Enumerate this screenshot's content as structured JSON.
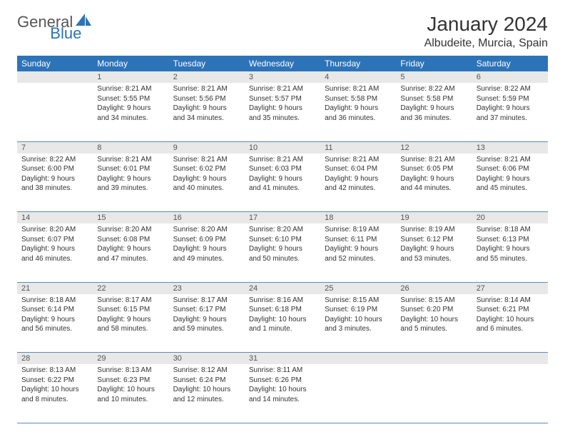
{
  "logo": {
    "text1": "General",
    "text2": "Blue",
    "brand_color": "#2d73b8",
    "gray": "#555555"
  },
  "title": "January 2024",
  "location": "Albudeite, Murcia, Spain",
  "colors": {
    "header_bg": "#2d73b8",
    "header_text": "#ffffff",
    "daynum_bg": "#e8e8e8",
    "border": "#5a8bb5",
    "text": "#333333"
  },
  "day_headers": [
    "Sunday",
    "Monday",
    "Tuesday",
    "Wednesday",
    "Thursday",
    "Friday",
    "Saturday"
  ],
  "weeks": [
    [
      null,
      {
        "n": "1",
        "sunrise": "8:21 AM",
        "sunset": "5:55 PM",
        "daylight": "9 hours and 34 minutes."
      },
      {
        "n": "2",
        "sunrise": "8:21 AM",
        "sunset": "5:56 PM",
        "daylight": "9 hours and 34 minutes."
      },
      {
        "n": "3",
        "sunrise": "8:21 AM",
        "sunset": "5:57 PM",
        "daylight": "9 hours and 35 minutes."
      },
      {
        "n": "4",
        "sunrise": "8:21 AM",
        "sunset": "5:58 PM",
        "daylight": "9 hours and 36 minutes."
      },
      {
        "n": "5",
        "sunrise": "8:22 AM",
        "sunset": "5:58 PM",
        "daylight": "9 hours and 36 minutes."
      },
      {
        "n": "6",
        "sunrise": "8:22 AM",
        "sunset": "5:59 PM",
        "daylight": "9 hours and 37 minutes."
      }
    ],
    [
      {
        "n": "7",
        "sunrise": "8:22 AM",
        "sunset": "6:00 PM",
        "daylight": "9 hours and 38 minutes."
      },
      {
        "n": "8",
        "sunrise": "8:21 AM",
        "sunset": "6:01 PM",
        "daylight": "9 hours and 39 minutes."
      },
      {
        "n": "9",
        "sunrise": "8:21 AM",
        "sunset": "6:02 PM",
        "daylight": "9 hours and 40 minutes."
      },
      {
        "n": "10",
        "sunrise": "8:21 AM",
        "sunset": "6:03 PM",
        "daylight": "9 hours and 41 minutes."
      },
      {
        "n": "11",
        "sunrise": "8:21 AM",
        "sunset": "6:04 PM",
        "daylight": "9 hours and 42 minutes."
      },
      {
        "n": "12",
        "sunrise": "8:21 AM",
        "sunset": "6:05 PM",
        "daylight": "9 hours and 44 minutes."
      },
      {
        "n": "13",
        "sunrise": "8:21 AM",
        "sunset": "6:06 PM",
        "daylight": "9 hours and 45 minutes."
      }
    ],
    [
      {
        "n": "14",
        "sunrise": "8:20 AM",
        "sunset": "6:07 PM",
        "daylight": "9 hours and 46 minutes."
      },
      {
        "n": "15",
        "sunrise": "8:20 AM",
        "sunset": "6:08 PM",
        "daylight": "9 hours and 47 minutes."
      },
      {
        "n": "16",
        "sunrise": "8:20 AM",
        "sunset": "6:09 PM",
        "daylight": "9 hours and 49 minutes."
      },
      {
        "n": "17",
        "sunrise": "8:20 AM",
        "sunset": "6:10 PM",
        "daylight": "9 hours and 50 minutes."
      },
      {
        "n": "18",
        "sunrise": "8:19 AM",
        "sunset": "6:11 PM",
        "daylight": "9 hours and 52 minutes."
      },
      {
        "n": "19",
        "sunrise": "8:19 AM",
        "sunset": "6:12 PM",
        "daylight": "9 hours and 53 minutes."
      },
      {
        "n": "20",
        "sunrise": "8:18 AM",
        "sunset": "6:13 PM",
        "daylight": "9 hours and 55 minutes."
      }
    ],
    [
      {
        "n": "21",
        "sunrise": "8:18 AM",
        "sunset": "6:14 PM",
        "daylight": "9 hours and 56 minutes."
      },
      {
        "n": "22",
        "sunrise": "8:17 AM",
        "sunset": "6:15 PM",
        "daylight": "9 hours and 58 minutes."
      },
      {
        "n": "23",
        "sunrise": "8:17 AM",
        "sunset": "6:17 PM",
        "daylight": "9 hours and 59 minutes."
      },
      {
        "n": "24",
        "sunrise": "8:16 AM",
        "sunset": "6:18 PM",
        "daylight": "10 hours and 1 minute."
      },
      {
        "n": "25",
        "sunrise": "8:15 AM",
        "sunset": "6:19 PM",
        "daylight": "10 hours and 3 minutes."
      },
      {
        "n": "26",
        "sunrise": "8:15 AM",
        "sunset": "6:20 PM",
        "daylight": "10 hours and 5 minutes."
      },
      {
        "n": "27",
        "sunrise": "8:14 AM",
        "sunset": "6:21 PM",
        "daylight": "10 hours and 6 minutes."
      }
    ],
    [
      {
        "n": "28",
        "sunrise": "8:13 AM",
        "sunset": "6:22 PM",
        "daylight": "10 hours and 8 minutes."
      },
      {
        "n": "29",
        "sunrise": "8:13 AM",
        "sunset": "6:23 PM",
        "daylight": "10 hours and 10 minutes."
      },
      {
        "n": "30",
        "sunrise": "8:12 AM",
        "sunset": "6:24 PM",
        "daylight": "10 hours and 12 minutes."
      },
      {
        "n": "31",
        "sunrise": "8:11 AM",
        "sunset": "6:26 PM",
        "daylight": "10 hours and 14 minutes."
      },
      null,
      null,
      null
    ]
  ],
  "labels": {
    "sunrise": "Sunrise:",
    "sunset": "Sunset:",
    "daylight": "Daylight:"
  }
}
